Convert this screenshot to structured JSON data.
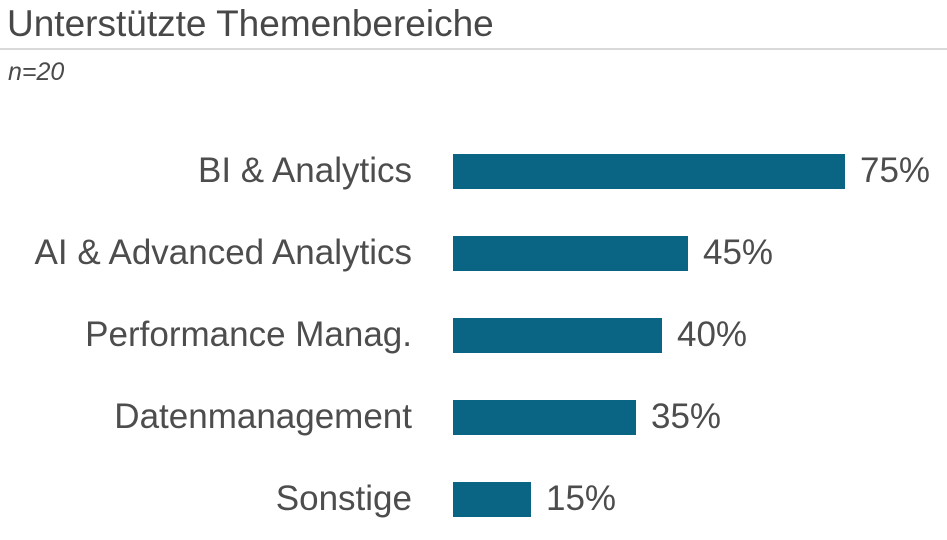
{
  "header": {
    "title": "Unterstützte Themenbereiche",
    "subtitle": "n=20"
  },
  "colors": {
    "bar": "#0a6585",
    "text": "#4d4d4d",
    "title_text": "#484848",
    "divider": "#d9d9d9",
    "background": "#ffffff"
  },
  "chart_data": {
    "type": "bar",
    "orientation": "horizontal",
    "title": "Unterstützte Themenbereiche",
    "subtitle": "n=20",
    "categories": [
      "BI & Analytics",
      "AI & Advanced Analytics",
      "Performance Manag.",
      "Datenmanagement",
      "Sonstige"
    ],
    "values": [
      75,
      45,
      40,
      35,
      15
    ],
    "value_labels": [
      "75%",
      "45%",
      "40%",
      "35%",
      "15%"
    ],
    "unit": "%",
    "xlim": [
      0,
      100
    ],
    "grid": false,
    "legend": false,
    "value_label_position": "end-of-bar",
    "category_label_position": "left-right-aligned"
  }
}
